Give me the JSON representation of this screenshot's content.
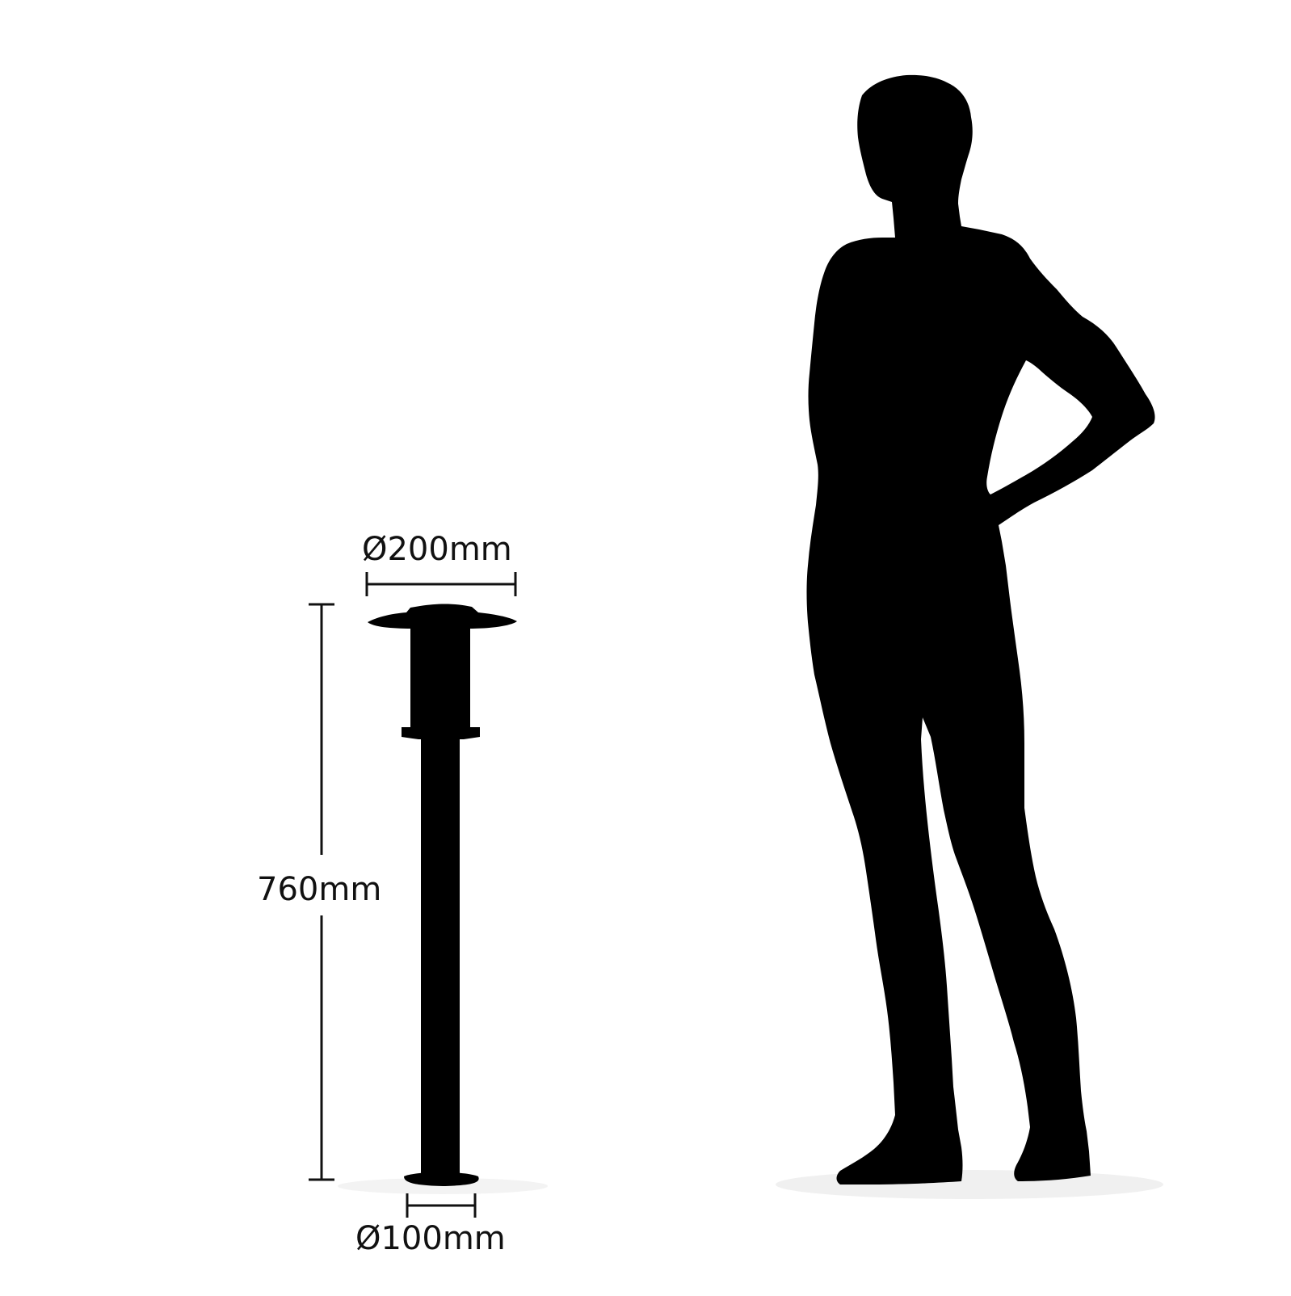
{
  "diagram": {
    "dimensions": {
      "top_diameter": "Ø200mm",
      "height": "760mm",
      "base_diameter": "Ø100mm"
    },
    "colors": {
      "background": "#ffffff",
      "silhouette": "#000000",
      "ground_shadow": "#f2f2f2",
      "dimension_line": "#111111"
    }
  }
}
